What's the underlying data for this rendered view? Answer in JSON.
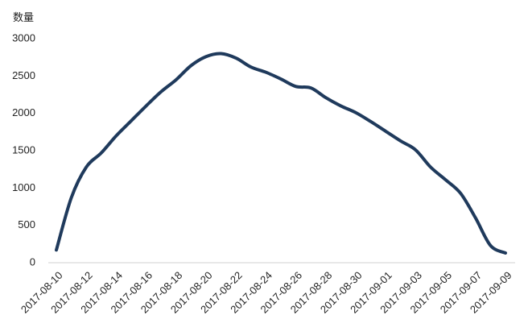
{
  "chart_data": {
    "type": "line",
    "y_label": "数量",
    "categories": [
      "2017-08-10",
      null,
      "2017-08-12",
      null,
      "2017-08-14",
      null,
      "2017-08-16",
      null,
      "2017-08-18",
      null,
      "2017-08-20",
      null,
      "2017-08-22",
      null,
      "2017-08-24",
      null,
      "2017-08-26",
      null,
      "2017-08-28",
      null,
      "2017-08-30",
      null,
      "2017-09-01",
      null,
      "2017-09-03",
      null,
      "2017-09-05",
      null,
      "2017-09-07",
      null,
      "2017-09-09"
    ],
    "series": [
      {
        "name": "数量",
        "color": "#1f3a5c",
        "values": [
          170,
          870,
          1280,
          1470,
          1700,
          1900,
          2100,
          2290,
          2450,
          2640,
          2760,
          2800,
          2740,
          2620,
          2550,
          2460,
          2360,
          2340,
          2210,
          2100,
          2010,
          1890,
          1760,
          1630,
          1510,
          1280,
          1110,
          930,
          600,
          230,
          130
        ]
      }
    ],
    "ylim": [
      0,
      3000
    ],
    "yticks": [
      0,
      500,
      1000,
      1500,
      2000,
      2500,
      3000
    ],
    "grid": false
  }
}
